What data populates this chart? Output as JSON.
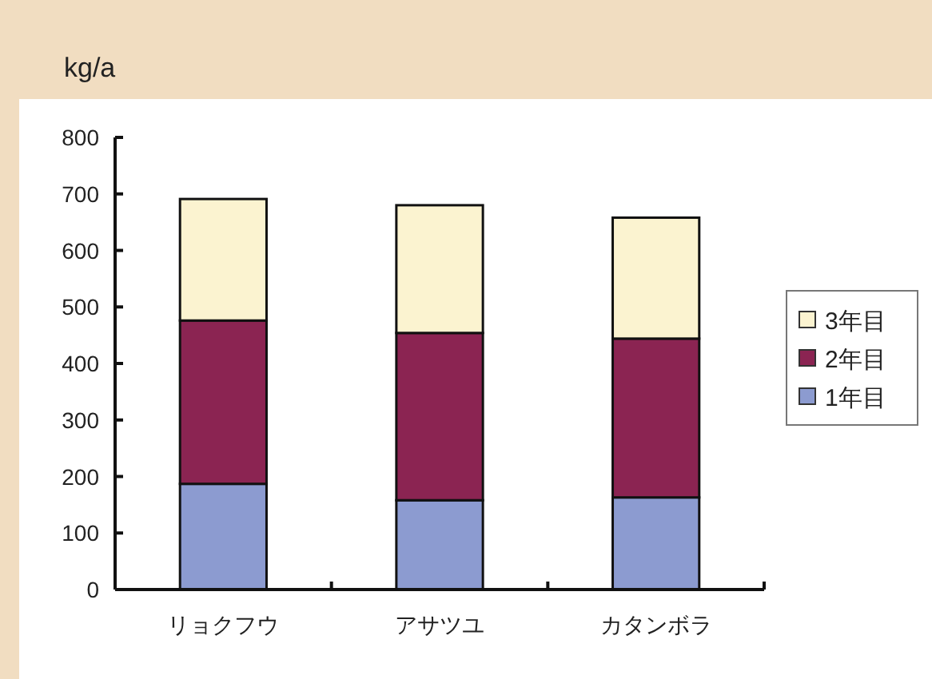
{
  "chart_data": {
    "type": "bar",
    "stacked": true,
    "ylabel": "kg/a",
    "categories": [
      "リョクフウ",
      "アサツユ",
      "カタンボラ"
    ],
    "series": [
      {
        "name": "1年目",
        "color": "#8c9bd0",
        "values": [
          187,
          158,
          163
        ]
      },
      {
        "name": "2年目",
        "color": "#8b2452",
        "values": [
          289,
          296,
          281
        ]
      },
      {
        "name": "3年目",
        "color": "#fbf3d0",
        "values": [
          215,
          226,
          214
        ]
      }
    ],
    "ylim": [
      0,
      800
    ],
    "yticks": [
      0,
      100,
      200,
      300,
      400,
      500,
      600,
      700,
      800
    ],
    "grid": false,
    "legend": "right"
  }
}
